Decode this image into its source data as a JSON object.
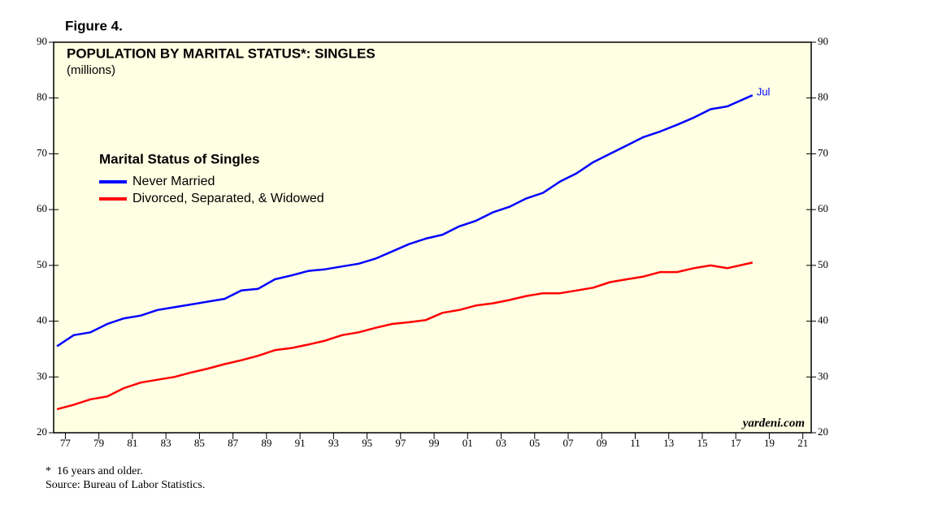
{
  "figure_label": "Figure 4.",
  "chart_data": {
    "type": "line",
    "title": "POPULATION BY MARITAL STATUS*: SINGLES",
    "subtitle": "(millions)",
    "legend_title": "Marital Status of Singles",
    "legend_position": "upper left",
    "annotation": "Jul",
    "watermark": "yardeni.com",
    "x": [
      1977,
      1978,
      1979,
      1980,
      1981,
      1982,
      1983,
      1984,
      1985,
      1986,
      1987,
      1988,
      1989,
      1990,
      1991,
      1992,
      1993,
      1994,
      1995,
      1996,
      1997,
      1998,
      1999,
      2000,
      2001,
      2002,
      2003,
      2004,
      2005,
      2006,
      2007,
      2008,
      2009,
      2010,
      2011,
      2012,
      2013,
      2014,
      2015,
      2016,
      2017,
      2018.5
    ],
    "series": [
      {
        "name": "Never Married",
        "color": "#0000ff",
        "values": [
          35.5,
          37.5,
          38,
          39.5,
          40.5,
          41,
          42,
          42.5,
          43,
          43.5,
          44,
          45.5,
          45.8,
          47.5,
          48.2,
          49,
          49.3,
          49.8,
          50.3,
          51.2,
          52.5,
          53.8,
          54.8,
          55.5,
          57,
          58,
          59.5,
          60.5,
          62,
          63,
          65,
          66.5,
          68.5,
          70,
          71.5,
          73,
          74,
          75.2,
          76.5,
          78,
          78.5,
          80.5
        ]
      },
      {
        "name": "Divorced, Separated, & Widowed",
        "color": "#ff0000",
        "values": [
          24.2,
          25,
          26,
          26.5,
          28,
          29,
          29.5,
          30,
          30.8,
          31.5,
          32.3,
          33,
          33.8,
          34.8,
          35.2,
          35.8,
          36.5,
          37.5,
          38,
          38.8,
          39.5,
          39.8,
          40.2,
          41.5,
          42,
          42.8,
          43.2,
          43.8,
          44.5,
          45,
          45,
          45.5,
          46,
          47,
          47.5,
          48,
          48.8,
          48.8,
          49.5,
          50,
          49.5,
          50.5
        ]
      }
    ],
    "xlim": [
      1976.8,
      2022
    ],
    "xticks": [
      {
        "value": 1977.5,
        "label": "77"
      },
      {
        "value": 1979.5,
        "label": "79"
      },
      {
        "value": 1981.5,
        "label": "81"
      },
      {
        "value": 1983.5,
        "label": "83"
      },
      {
        "value": 1985.5,
        "label": "85"
      },
      {
        "value": 1987.5,
        "label": "87"
      },
      {
        "value": 1989.5,
        "label": "89"
      },
      {
        "value": 1991.5,
        "label": "91"
      },
      {
        "value": 1993.5,
        "label": "93"
      },
      {
        "value": 1995.5,
        "label": "95"
      },
      {
        "value": 1997.5,
        "label": "97"
      },
      {
        "value": 1999.5,
        "label": "99"
      },
      {
        "value": 2001.5,
        "label": "01"
      },
      {
        "value": 2003.5,
        "label": "03"
      },
      {
        "value": 2005.5,
        "label": "05"
      },
      {
        "value": 2007.5,
        "label": "07"
      },
      {
        "value": 2009.5,
        "label": "09"
      },
      {
        "value": 2011.5,
        "label": "11"
      },
      {
        "value": 2013.5,
        "label": "13"
      },
      {
        "value": 2015.5,
        "label": "15"
      },
      {
        "value": 2017.5,
        "label": "17"
      },
      {
        "value": 2019.5,
        "label": "19"
      },
      {
        "value": 2021.5,
        "label": "21"
      }
    ],
    "ylim": [
      20,
      90
    ],
    "yticks": [
      20,
      30,
      40,
      50,
      60,
      70,
      80,
      90
    ],
    "background": "#ffffe3",
    "footnotes": [
      "*  16 years and older.",
      "Source: Bureau of Labor Statistics."
    ]
  }
}
